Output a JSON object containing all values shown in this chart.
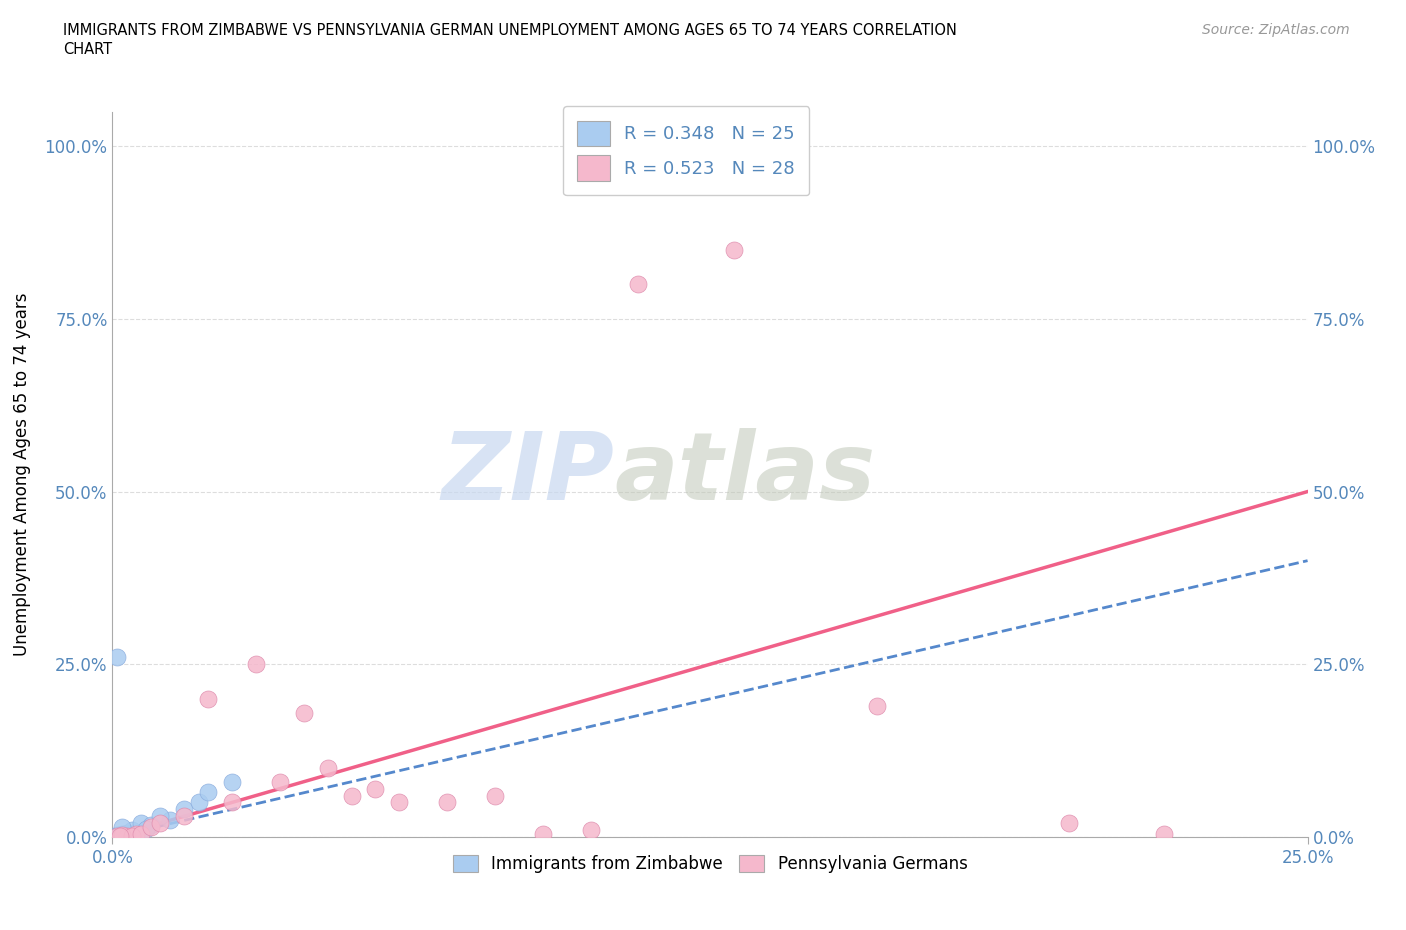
{
  "title_line1": "IMMIGRANTS FROM ZIMBABWE VS PENNSYLVANIA GERMAN UNEMPLOYMENT AMONG AGES 65 TO 74 YEARS CORRELATION",
  "title_line2": "CHART",
  "source": "Source: ZipAtlas.com",
  "ylabel_label": "Unemployment Among Ages 65 to 74 years",
  "legend_entry1": "R = 0.348   N = 25",
  "legend_entry2": "R = 0.523   N = 28",
  "legend_label1": "Immigrants from Zimbabwe",
  "legend_label2": "Pennsylvania Germans",
  "blue_color": "#aaccf0",
  "pink_color": "#f5b8cc",
  "blue_line_color": "#5588cc",
  "pink_line_color": "#f06088",
  "watermark_zip": "ZIP",
  "watermark_atlas": "atlas",
  "xmin": 0.0,
  "xmax": 25.0,
  "ymin": 0.0,
  "ymax": 105.0,
  "x_ticks": [
    0.0,
    25.0
  ],
  "y_ticks": [
    0.0,
    25.0,
    50.0,
    75.0,
    100.0
  ],
  "blue_x": [
    0.1,
    0.2,
    0.3,
    0.1,
    0.4,
    0.2,
    0.15,
    0.3,
    0.1,
    0.25,
    0.35,
    0.45,
    0.5,
    0.4,
    0.1,
    0.2,
    0.6,
    1.2,
    1.5,
    1.8,
    2.0,
    2.5,
    0.8,
    1.0,
    0.7
  ],
  "blue_y": [
    0.3,
    0.2,
    0.1,
    0.15,
    0.4,
    0.5,
    0.1,
    0.6,
    0.2,
    0.3,
    0.4,
    0.5,
    0.3,
    1.0,
    26.0,
    1.5,
    2.0,
    2.5,
    4.0,
    5.0,
    6.5,
    8.0,
    1.8,
    3.0,
    1.2
  ],
  "pink_x": [
    0.1,
    0.3,
    0.5,
    0.2,
    0.4,
    0.15,
    0.6,
    0.8,
    1.0,
    1.5,
    2.0,
    2.5,
    3.0,
    3.5,
    4.0,
    4.5,
    5.0,
    5.5,
    6.0,
    7.0,
    8.0,
    9.0,
    10.0,
    11.0,
    13.0,
    16.0,
    20.0,
    22.0
  ],
  "pink_y": [
    0.2,
    0.1,
    0.4,
    0.3,
    0.2,
    0.1,
    0.5,
    1.5,
    2.0,
    3.0,
    20.0,
    5.0,
    25.0,
    8.0,
    18.0,
    10.0,
    6.0,
    7.0,
    5.0,
    5.0,
    6.0,
    0.5,
    1.0,
    80.0,
    85.0,
    19.0,
    2.0,
    0.5
  ]
}
